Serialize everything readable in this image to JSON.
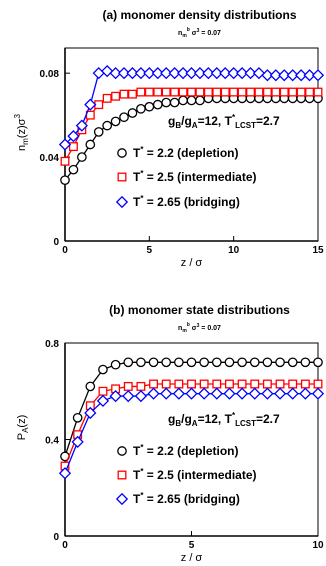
{
  "chart_data": [
    {
      "type": "line",
      "title": "(a) monomer density distributions",
      "subtitle": "n_m^b σ^3 = 0.07",
      "xlabel": "z / σ",
      "ylabel": "n_m(z)σ^3",
      "xlim": [
        0,
        15
      ],
      "ylim": [
        0,
        0.092
      ],
      "xticks": [
        0,
        5,
        10,
        15
      ],
      "yticks": [
        0,
        0.04,
        0.08
      ],
      "yticklabels": [
        "0",
        "0.04",
        "0.08"
      ],
      "annotation": "g_B/g_A=12, T*_LCST=2.7",
      "series": [
        {
          "name": "T* = 2.2 (depletion)",
          "color": "#000000",
          "marker": "circle",
          "x": [
            0,
            0.5,
            1,
            1.5,
            2,
            2.5,
            3,
            3.5,
            4,
            4.5,
            5,
            5.5,
            6,
            6.5,
            7,
            7.5,
            8,
            8.5,
            9,
            9.5,
            10,
            10.5,
            11,
            11.5,
            12,
            12.5,
            13,
            13.5,
            14,
            14.5,
            15
          ],
          "values": [
            0.029,
            0.034,
            0.04,
            0.046,
            0.052,
            0.055,
            0.057,
            0.059,
            0.061,
            0.063,
            0.064,
            0.065,
            0.066,
            0.066,
            0.067,
            0.067,
            0.067,
            0.068,
            0.068,
            0.068,
            0.068,
            0.068,
            0.068,
            0.068,
            0.068,
            0.068,
            0.068,
            0.068,
            0.068,
            0.068,
            0.068
          ]
        },
        {
          "name": "T* = 2.5 (intermediate)",
          "color": "#ff0000",
          "marker": "square",
          "x": [
            0,
            0.5,
            1,
            1.5,
            2,
            2.5,
            3,
            3.5,
            4,
            4.5,
            5,
            5.5,
            6,
            6.5,
            7,
            7.5,
            8,
            8.5,
            9,
            9.5,
            10,
            10.5,
            11,
            11.5,
            12,
            12.5,
            13,
            13.5,
            14,
            14.5,
            15
          ],
          "values": [
            0.038,
            0.045,
            0.053,
            0.06,
            0.065,
            0.068,
            0.069,
            0.07,
            0.07,
            0.071,
            0.071,
            0.071,
            0.071,
            0.071,
            0.071,
            0.071,
            0.071,
            0.071,
            0.071,
            0.071,
            0.071,
            0.071,
            0.071,
            0.071,
            0.071,
            0.071,
            0.071,
            0.071,
            0.071,
            0.071,
            0.071
          ]
        },
        {
          "name": "T* = 2.65 (bridging)",
          "color": "#0000ff",
          "marker": "diamond",
          "x": [
            0,
            0.5,
            1,
            1.5,
            2,
            2.5,
            3,
            3.5,
            4,
            4.5,
            5,
            5.5,
            6,
            6.5,
            7,
            7.5,
            8,
            8.5,
            9,
            9.5,
            10,
            10.5,
            11,
            11.5,
            12,
            12.5,
            13,
            13.5,
            14,
            14.5,
            15
          ],
          "values": [
            0.046,
            0.05,
            0.055,
            0.065,
            0.08,
            0.081,
            0.08,
            0.08,
            0.08,
            0.08,
            0.08,
            0.08,
            0.08,
            0.08,
            0.08,
            0.08,
            0.08,
            0.08,
            0.08,
            0.08,
            0.08,
            0.08,
            0.08,
            0.08,
            0.079,
            0.079,
            0.079,
            0.079,
            0.079,
            0.079,
            0.079
          ]
        }
      ]
    },
    {
      "type": "line",
      "title": "(b) monomer state distributions",
      "subtitle": "n_m^b σ^3 = 0.07",
      "xlabel": "z / σ",
      "ylabel": "P_A(z)",
      "xlim": [
        0,
        10
      ],
      "ylim": [
        0,
        0.8
      ],
      "xticks": [
        0,
        5,
        10
      ],
      "yticks": [
        0,
        0.4,
        0.8
      ],
      "yticklabels": [
        "0",
        "0.4",
        "0.8"
      ],
      "annotation": "g_B/g_A=12, T*_LCST=2.7",
      "series": [
        {
          "name": "T* = 2.2 (depletion)",
          "color": "#000000",
          "marker": "circle",
          "x": [
            0,
            0.5,
            1,
            1.5,
            2,
            2.5,
            3,
            3.5,
            4,
            4.5,
            5,
            5.5,
            6,
            6.5,
            7,
            7.5,
            8,
            8.5,
            9,
            9.5,
            10
          ],
          "values": [
            0.33,
            0.49,
            0.62,
            0.69,
            0.71,
            0.72,
            0.72,
            0.72,
            0.72,
            0.72,
            0.72,
            0.72,
            0.72,
            0.72,
            0.72,
            0.72,
            0.72,
            0.72,
            0.72,
            0.72,
            0.72
          ]
        },
        {
          "name": "T* = 2.5 (intermediate)",
          "color": "#ff0000",
          "marker": "square",
          "x": [
            0,
            0.5,
            1,
            1.5,
            2,
            2.5,
            3,
            3.5,
            4,
            4.5,
            5,
            5.5,
            6,
            6.5,
            7,
            7.5,
            8,
            8.5,
            9,
            9.5,
            10
          ],
          "values": [
            0.29,
            0.42,
            0.54,
            0.6,
            0.61,
            0.62,
            0.62,
            0.63,
            0.63,
            0.63,
            0.63,
            0.63,
            0.63,
            0.63,
            0.63,
            0.63,
            0.63,
            0.63,
            0.63,
            0.63,
            0.63
          ]
        },
        {
          "name": "T* = 2.65 (bridging)",
          "color": "#0000ff",
          "marker": "diamond",
          "x": [
            0,
            0.5,
            1,
            1.5,
            2,
            2.5,
            3,
            3.5,
            4,
            4.5,
            5,
            5.5,
            6,
            6.5,
            7,
            7.5,
            8,
            8.5,
            9,
            9.5,
            10
          ],
          "values": [
            0.26,
            0.39,
            0.51,
            0.56,
            0.58,
            0.58,
            0.58,
            0.59,
            0.59,
            0.59,
            0.59,
            0.59,
            0.59,
            0.59,
            0.59,
            0.59,
            0.59,
            0.59,
            0.59,
            0.59,
            0.59
          ]
        }
      ]
    }
  ]
}
